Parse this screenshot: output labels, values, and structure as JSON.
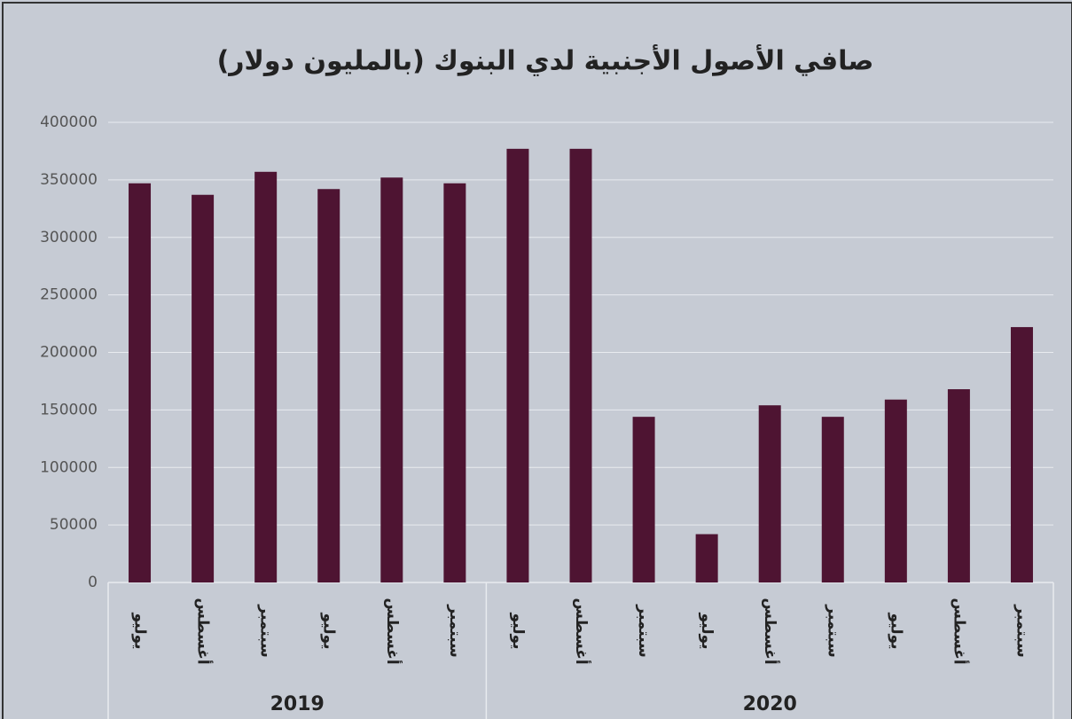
{
  "chart_data": {
    "type": "bar",
    "title": "صافي الأصول الأجنبية لدي البنوك (بالمليون دولار)",
    "groups": [
      {
        "name": "2019",
        "categories": [
          "يوليو",
          "أغسطس",
          "سبتمبر",
          "يوليو",
          "أغسطس",
          "سبتمبر"
        ]
      },
      {
        "name": "2020",
        "categories": [
          "يوليو",
          "أغسطس",
          "سبتمبر",
          "يوليو",
          "أغسطس",
          "سبتمبر",
          "يوليو",
          "أغسطس",
          "سبتمبر"
        ]
      }
    ],
    "values": [
      347000,
      337000,
      357000,
      342000,
      352000,
      347000,
      377000,
      377000,
      144000,
      42000,
      154000,
      144000,
      159000,
      168000,
      222000
    ],
    "color": "#4e1432",
    "ylim": [
      0,
      400000
    ],
    "yticks": [
      0,
      50000,
      100000,
      150000,
      200000,
      250000,
      300000,
      350000,
      400000
    ],
    "grid": true
  }
}
